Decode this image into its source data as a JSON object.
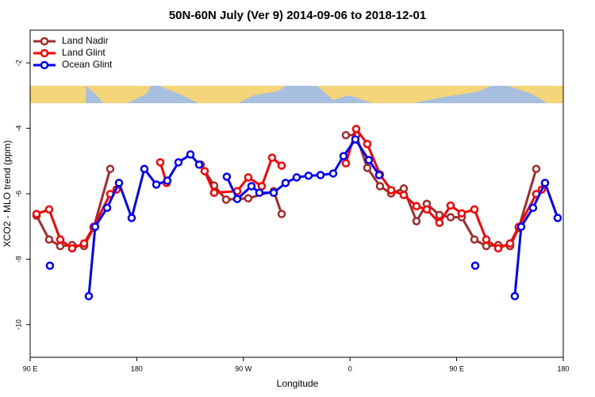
{
  "chart_data": {
    "type": "line",
    "title": "50N-60N July (Ver 9)   2014-09-06 to 2018-12-01",
    "x_label": "Longitude",
    "y_label": "XCO2 - MLO trend (ppm)",
    "xlim": [
      90,
      540
    ],
    "ylim": [
      -11,
      -1
    ],
    "xticks": [
      {
        "value": 90,
        "label": "90 E"
      },
      180,
      {
        "value": 270,
        "label": "90 W"
      },
      {
        "value": 360,
        "label": "0"
      },
      {
        "value": 450,
        "label": "90 E"
      },
      {
        "value": 540,
        "label": "180"
      }
    ],
    "yticks": [
      -2,
      -4,
      -6,
      -8,
      -10
    ],
    "legend_position": "top-left",
    "series": [
      {
        "name": "Land Nadir",
        "color": "#a52a2a",
        "x": [
          95.4,
          106,
          115.4,
          125.5,
          135.5,
          143.6,
          157.6,
          null,
          234,
          245.3,
          255.4,
          274.1,
          295.6,
          302.3,
          null,
          356.5,
          365.2,
          374.6,
          385.3,
          394.7,
          405.4,
          416.1,
          424.8,
          435.5,
          444.9,
          454.3,
          465,
          475,
          485.1,
          495.1,
          502.5,
          517.2
        ],
        "values": [
          -6.67,
          -7.4,
          -7.6,
          -7.57,
          -7.6,
          -7.04,
          -5.24,
          null,
          -5.11,
          -5.75,
          -6.18,
          -6.14,
          -5.92,
          -6.62,
          null,
          -4.21,
          -4.21,
          -5.21,
          -5.77,
          -5.99,
          -5.84,
          -6.84,
          -6.31,
          -6.65,
          -6.72,
          -6.72,
          -7.4,
          -7.6,
          -7.57,
          -7.6,
          -7.04,
          -5.24
        ]
      },
      {
        "name": "Land Glint",
        "color": "#ff0000",
        "x": [
          95.4,
          106,
          115.4,
          125.5,
          135.5,
          143.6,
          157.6,
          163,
          null,
          199.8,
          205.2,
          null,
          237.3,
          245.3,
          264.8,
          274.1,
          285.5,
          294.2,
          302.3,
          null,
          356.5,
          365.2,
          374.6,
          385.3,
          394.7,
          405.4,
          416.1,
          424.8,
          435.5,
          444.9,
          454.3,
          465,
          475,
          485.1,
          495.1,
          502.5,
          517.2,
          521.9
        ],
        "values": [
          -6.62,
          -6.48,
          -7.4,
          -7.67,
          -7.52,
          -7.01,
          -6.01,
          -5.87,
          null,
          -5.04,
          -5.67,
          null,
          -5.31,
          -5.97,
          -5.92,
          -5.5,
          -5.77,
          -4.9,
          -5.14,
          null,
          -5.07,
          -4.02,
          -4.48,
          -5.41,
          -5.89,
          -6.04,
          -6.38,
          -6.48,
          -6.89,
          -6.36,
          -6.6,
          -6.48,
          -7.4,
          -7.67,
          -7.52,
          -7.01,
          -6.01,
          -5.87
        ]
      },
      {
        "name": "Ocean Glint",
        "color": "#0000ff",
        "x": [
          106.7,
          null,
          139.5,
          144.9,
          155,
          165,
          175.7,
          186.4,
          196.5,
          205.8,
          215.2,
          225.3,
          232.6,
          null,
          256,
          264.8,
          276.8,
          283.5,
          295.6,
          305.6,
          315,
          325,
          335.1,
          345.8,
          354.5,
          364.5,
          375.9,
          384.6,
          null,
          465.7,
          null,
          499.1,
          504.5,
          514.5,
          524.6,
          535.3
        ],
        "values": [
          -8.2,
          null,
          -9.13,
          -7.01,
          -6.43,
          -5.67,
          -6.74,
          -5.24,
          -5.72,
          -5.6,
          -5.04,
          -4.8,
          -5.11,
          null,
          -5.48,
          -6.16,
          -5.77,
          -5.97,
          -5.97,
          -5.67,
          -5.5,
          -5.45,
          -5.43,
          -5.38,
          -4.85,
          -4.34,
          -4.97,
          -5.43,
          null,
          -8.2,
          null,
          -9.13,
          -7.01,
          -6.43,
          -5.67,
          -6.74
        ]
      }
    ]
  }
}
